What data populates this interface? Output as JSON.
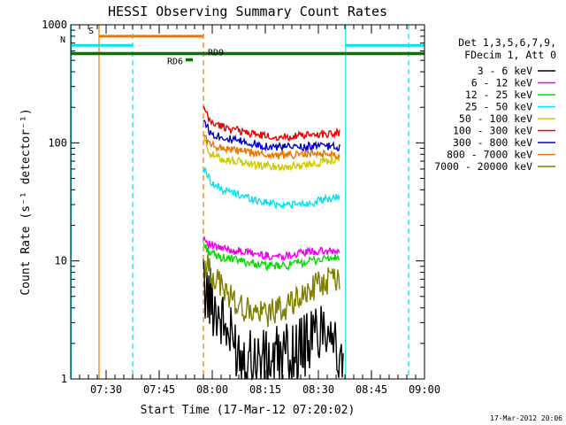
{
  "colors": {
    "background": "#ffffff",
    "axis": "#000000",
    "black": "#000000",
    "magenta": "#ee00ee",
    "green": "#00dd00",
    "cyan": "#00e5ee",
    "yellow": "#cccc00",
    "red": "#ee0000",
    "blue": "#0000cc",
    "orange": "#ee7700",
    "olive": "#808000",
    "darkgreen": "#007700"
  },
  "chart_data": {
    "type": "line",
    "title": "HESSI Observing Summary Count Rates",
    "xlabel": "Start Time (17-Mar-12 07:20:02)",
    "ylabel": "Count Rate (s⁻¹ detector⁻¹)",
    "yscale": "log",
    "ylim": [
      1,
      1000
    ],
    "xlim_minutes": [
      0,
      100
    ],
    "x_ticks": [
      {
        "t": 10,
        "label": "07:30"
      },
      {
        "t": 25,
        "label": "07:45"
      },
      {
        "t": 40,
        "label": "08:00"
      },
      {
        "t": 55,
        "label": "08:15"
      },
      {
        "t": 70,
        "label": "08:30"
      },
      {
        "t": 85,
        "label": "08:45"
      },
      {
        "t": 100,
        "label": "09:00"
      }
    ],
    "y_ticks": [
      {
        "v": 1,
        "label": "1"
      },
      {
        "v": 10,
        "label": "10"
      },
      {
        "v": 100,
        "label": "100"
      },
      {
        "v": 1000,
        "label": "1000"
      }
    ],
    "legend_header": [
      "Det 1,3,5,6,7,9,",
      "FDecim 1, Att 0"
    ],
    "legend_placement": "right",
    "series": [
      {
        "name": "3 - 6 keV",
        "color": "black",
        "points": [
          [
            37.5,
            6.0
          ],
          [
            39.0,
            5.0
          ],
          [
            41.0,
            4.0
          ],
          [
            43.0,
            3.0
          ],
          [
            45.0,
            2.2
          ],
          [
            48.0,
            1.7
          ],
          [
            52.0,
            1.5
          ],
          [
            55.0,
            1.4
          ],
          [
            58.0,
            1.5
          ],
          [
            62.0,
            1.6
          ],
          [
            65.0,
            1.8
          ],
          [
            68.0,
            2.2
          ],
          [
            70.0,
            2.6
          ],
          [
            72.0,
            3.0
          ],
          [
            74.0,
            2.8
          ],
          [
            76.0,
            1.2
          ],
          [
            77.0,
            1.0
          ]
        ]
      },
      {
        "name": "6 - 12 keV",
        "color": "magenta",
        "points": [
          [
            37.5,
            16.0
          ],
          [
            39.0,
            14.0
          ],
          [
            41.0,
            13.0
          ],
          [
            44.0,
            12.5
          ],
          [
            48.0,
            12.0
          ],
          [
            52.0,
            11.5
          ],
          [
            56.0,
            11.0
          ],
          [
            60.0,
            11.0
          ],
          [
            64.0,
            11.5
          ],
          [
            68.0,
            12.0
          ],
          [
            72.0,
            12.0
          ],
          [
            76.0,
            12.0
          ]
        ]
      },
      {
        "name": "12 - 25 keV",
        "color": "green",
        "points": [
          [
            37.5,
            14.0
          ],
          [
            39.0,
            12.0
          ],
          [
            41.0,
            11.0
          ],
          [
            44.0,
            10.5
          ],
          [
            48.0,
            10.0
          ],
          [
            52.0,
            9.5
          ],
          [
            56.0,
            9.0
          ],
          [
            60.0,
            9.0
          ],
          [
            64.0,
            9.5
          ],
          [
            68.0,
            10.0
          ],
          [
            72.0,
            10.5
          ],
          [
            76.0,
            10.5
          ]
        ]
      },
      {
        "name": "25 - 50 keV",
        "color": "cyan",
        "points": [
          [
            37.5,
            60.0
          ],
          [
            38.5,
            55.0
          ],
          [
            40.0,
            45.0
          ],
          [
            43.0,
            40.0
          ],
          [
            47.0,
            37.0
          ],
          [
            52.0,
            33.0
          ],
          [
            56.0,
            31.0
          ],
          [
            60.0,
            30.0
          ],
          [
            64.0,
            30.0
          ],
          [
            68.0,
            31.0
          ],
          [
            72.0,
            33.0
          ],
          [
            76.0,
            35.0
          ]
        ]
      },
      {
        "name": "50 - 100 keV",
        "color": "yellow",
        "points": [
          [
            37.5,
            110.0
          ],
          [
            38.5,
            95.0
          ],
          [
            39.5,
            80.0
          ],
          [
            42.0,
            75.0
          ],
          [
            46.0,
            70.0
          ],
          [
            50.0,
            67.0
          ],
          [
            54.0,
            64.0
          ],
          [
            58.0,
            63.0
          ],
          [
            62.0,
            63.0
          ],
          [
            66.0,
            65.0
          ],
          [
            70.0,
            68.0
          ],
          [
            74.0,
            72.0
          ],
          [
            76.0,
            74.0
          ]
        ]
      },
      {
        "name": "100 - 300 keV",
        "color": "red",
        "points": [
          [
            37.5,
            200.0
          ],
          [
            38.5,
            170.0
          ],
          [
            39.5,
            150.0
          ],
          [
            42.0,
            140.0
          ],
          [
            46.0,
            130.0
          ],
          [
            50.0,
            122.0
          ],
          [
            54.0,
            115.0
          ],
          [
            58.0,
            112.0
          ],
          [
            62.0,
            113.0
          ],
          [
            66.0,
            115.0
          ],
          [
            70.0,
            118.0
          ],
          [
            74.0,
            121.0
          ],
          [
            76.0,
            122.0
          ]
        ]
      },
      {
        "name": "300 - 800 keV",
        "color": "blue",
        "points": [
          [
            37.5,
            160.0
          ],
          [
            38.5,
            140.0
          ],
          [
            39.5,
            120.0
          ],
          [
            42.0,
            115.0
          ],
          [
            46.0,
            105.0
          ],
          [
            50.0,
            100.0
          ],
          [
            54.0,
            95.0
          ],
          [
            58.0,
            92.0
          ],
          [
            62.0,
            92.0
          ],
          [
            66.0,
            93.0
          ],
          [
            70.0,
            94.0
          ],
          [
            74.0,
            93.0
          ],
          [
            76.0,
            92.0
          ]
        ]
      },
      {
        "name": "800 - 7000 keV",
        "color": "orange",
        "points": [
          [
            37.5,
            120.0
          ],
          [
            38.5,
            105.0
          ],
          [
            39.5,
            95.0
          ],
          [
            42.0,
            92.0
          ],
          [
            46.0,
            87.0
          ],
          [
            50.0,
            83.0
          ],
          [
            54.0,
            80.0
          ],
          [
            58.0,
            78.0
          ],
          [
            62.0,
            79.0
          ],
          [
            66.0,
            80.0
          ],
          [
            70.0,
            81.0
          ],
          [
            74.0,
            80.0
          ],
          [
            76.0,
            80.0
          ]
        ]
      },
      {
        "name": "7000 - 20000 keV",
        "color": "olive",
        "points": [
          [
            37.5,
            10.0
          ],
          [
            39.0,
            8.5
          ],
          [
            41.0,
            7.0
          ],
          [
            43.0,
            6.0
          ],
          [
            45.0,
            5.0
          ],
          [
            47.0,
            4.3
          ],
          [
            50.0,
            3.8
          ],
          [
            54.0,
            3.5
          ],
          [
            58.0,
            3.8
          ],
          [
            62.0,
            4.2
          ],
          [
            65.0,
            5.0
          ],
          [
            68.0,
            5.8
          ],
          [
            71.0,
            6.5
          ],
          [
            74.0,
            7.0
          ],
          [
            76.0,
            7.5
          ]
        ]
      }
    ],
    "flags": [
      {
        "name": "S",
        "color": "orange",
        "x0": 8.0,
        "x1": 37.5,
        "y_value": 800
      },
      {
        "name": "N",
        "color": "cyan",
        "x0": 0.0,
        "x1": 17.5,
        "y_value": 670
      },
      {
        "name": "N",
        "color": "cyan",
        "x0": 77.7,
        "x1": 100.0,
        "y_value": 670,
        "label": false
      },
      {
        "name": "",
        "color": "darkgreen",
        "x0": 0.0,
        "x1": 100.0,
        "y_value": 570,
        "label": false
      },
      {
        "name": "RD9",
        "color": "darkgreen",
        "x0": 37.6,
        "x1": 38.0,
        "y_value": 570,
        "label_at": "right"
      },
      {
        "name": "RD6",
        "color": "darkgreen",
        "x0": 32.5,
        "x1": 34.5,
        "y_value": 505,
        "label_at": "left"
      }
    ],
    "vertical_lines": [
      {
        "t": 8.0,
        "color": "orange",
        "style": "solid"
      },
      {
        "t": 17.5,
        "color": "cyan",
        "style": "dashed"
      },
      {
        "t": 37.5,
        "color": "orange",
        "style": "dashed"
      },
      {
        "t": 77.7,
        "color": "cyan",
        "style": "solid"
      },
      {
        "t": 95.5,
        "color": "cyan",
        "style": "dashed"
      },
      {
        "t": 0.1,
        "color": "cyan",
        "style": "solid"
      }
    ]
  },
  "footer": {
    "timestamp": "17-Mar-2012 20:06"
  }
}
